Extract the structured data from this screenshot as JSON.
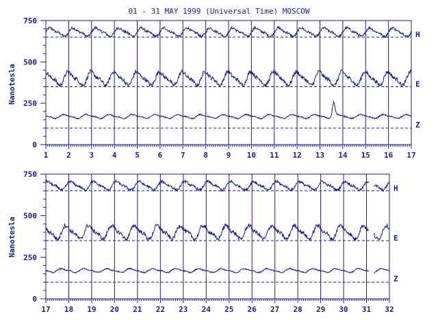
{
  "chart_data": {
    "type": "line",
    "title": "01 - 31 MAY 1999 (Universal Time) MOSCOW",
    "ylabel": "Nanotesla",
    "ylim": [
      0,
      750
    ],
    "yticks": [
      "750",
      "500",
      "250",
      "0"
    ],
    "components": [
      {
        "name": "H",
        "baseline": 650,
        "mean": 680,
        "amplitude": 22
      },
      {
        "name": "E",
        "baseline": 350,
        "mean": 400,
        "amplitude": 35
      },
      {
        "name": "Z",
        "baseline": 100,
        "mean": 170,
        "amplitude": 10
      }
    ],
    "panels": [
      {
        "x_tick_labels": [
          "1",
          "2",
          "3",
          "4",
          "5",
          "6",
          "7",
          "8",
          "9",
          "10",
          "11",
          "12",
          "13",
          "14",
          "15",
          "16",
          "17"
        ],
        "day_start": 1,
        "day_end": 17,
        "events": [
          {
            "component": "Z",
            "day": 13.6,
            "value": 255
          }
        ]
      },
      {
        "x_tick_labels": [
          "17",
          "18",
          "19",
          "20",
          "21",
          "22",
          "23",
          "24",
          "25",
          "26",
          "27",
          "28",
          "29",
          "30",
          "31",
          "32"
        ],
        "day_start": 17,
        "day_end": 32,
        "gap": [
          31.1,
          31.3
        ],
        "events": []
      }
    ]
  }
}
